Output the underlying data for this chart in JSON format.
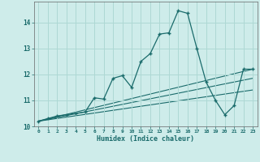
{
  "xlabel": "Humidex (Indice chaleur)",
  "bg_color": "#ceecea",
  "grid_color": "#aed8d4",
  "line_color": "#1a6b6b",
  "xlim": [
    -0.5,
    23.5
  ],
  "ylim": [
    10.0,
    14.8
  ],
  "yticks": [
    10,
    11,
    12,
    13,
    14
  ],
  "xticks": [
    0,
    1,
    2,
    3,
    4,
    5,
    6,
    7,
    8,
    9,
    10,
    11,
    12,
    13,
    14,
    15,
    16,
    17,
    18,
    19,
    20,
    21,
    22,
    23
  ],
  "series": {
    "main_line": {
      "x": [
        0,
        1,
        2,
        3,
        4,
        5,
        6,
        7,
        8,
        9,
        10,
        11,
        12,
        13,
        14,
        15,
        16,
        17,
        18,
        19,
        20,
        21,
        22,
        23
      ],
      "y": [
        10.2,
        10.3,
        10.4,
        10.45,
        10.5,
        10.55,
        11.1,
        11.05,
        11.85,
        11.95,
        11.5,
        12.5,
        12.8,
        13.55,
        13.6,
        14.45,
        14.35,
        13.0,
        11.7,
        11.0,
        10.45,
        10.8,
        12.2,
        12.2
      ]
    },
    "line2": {
      "x": [
        0,
        23
      ],
      "y": [
        10.2,
        12.2
      ]
    },
    "line3": {
      "x": [
        0,
        23
      ],
      "y": [
        10.2,
        11.85
      ]
    },
    "line4": {
      "x": [
        0,
        23
      ],
      "y": [
        10.2,
        11.4
      ]
    }
  }
}
